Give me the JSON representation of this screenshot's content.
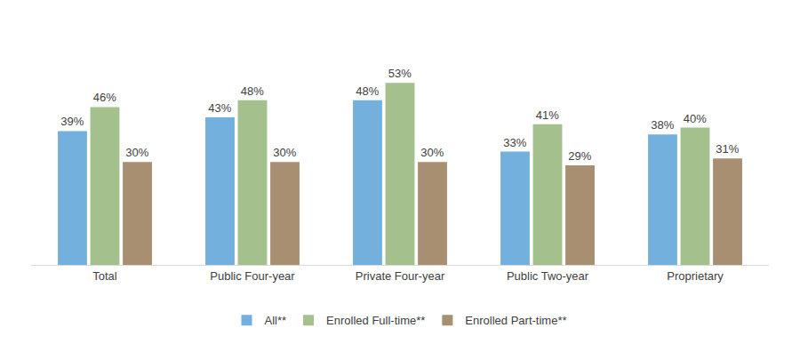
{
  "chart_data": {
    "type": "bar",
    "categories": [
      "Total",
      "Public Four-year",
      "Private Four-year",
      "Public Two-year",
      "Proprietary"
    ],
    "series": [
      {
        "name": "All**",
        "color": "#74b0de",
        "values": [
          39,
          43,
          48,
          33,
          38
        ],
        "value_labels": [
          "39%",
          "43%",
          "48%",
          "33%",
          "38%"
        ]
      },
      {
        "name": "Enrolled Full-time**",
        "color": "#a4c08c",
        "values": [
          46,
          48,
          53,
          41,
          40
        ],
        "value_labels": [
          "46%",
          "48%",
          "53%",
          "41%",
          "40%"
        ]
      },
      {
        "name": "Enrolled Part-time**",
        "color": "#a98f72",
        "values": [
          30,
          30,
          30,
          29,
          31
        ],
        "value_labels": [
          "30%",
          "30%",
          "30%",
          "29%",
          "31%"
        ]
      }
    ],
    "ylim": [
      0,
      72
    ],
    "grid": false,
    "legend": "bottom",
    "data_labels": true,
    "tick_labels": "x"
  }
}
